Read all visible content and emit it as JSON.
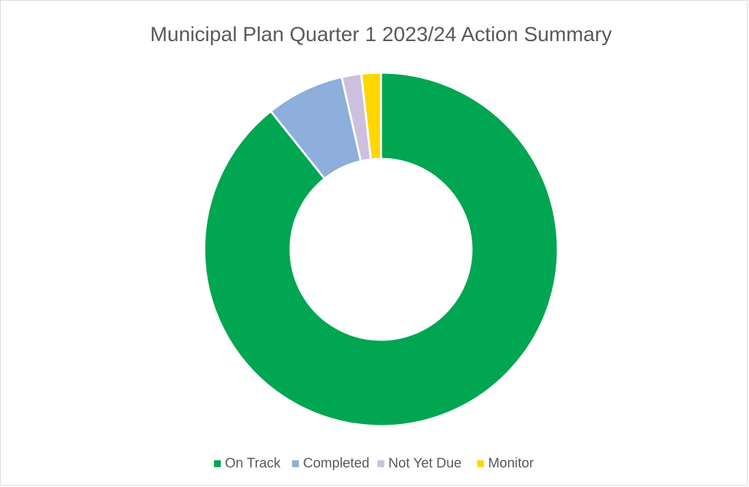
{
  "chart_data": {
    "type": "pie",
    "title": "Municipal Plan Quarter 1 2023/24 Action Summary",
    "categories": [
      "On Track",
      "Completed",
      "Not Yet Due",
      "Monitor"
    ],
    "values": [
      50,
      4,
      1,
      1
    ],
    "colors": [
      "#00a651",
      "#8eaedb",
      "#ccc0de",
      "#ffd700"
    ],
    "donut": true,
    "legend": "bottom"
  }
}
